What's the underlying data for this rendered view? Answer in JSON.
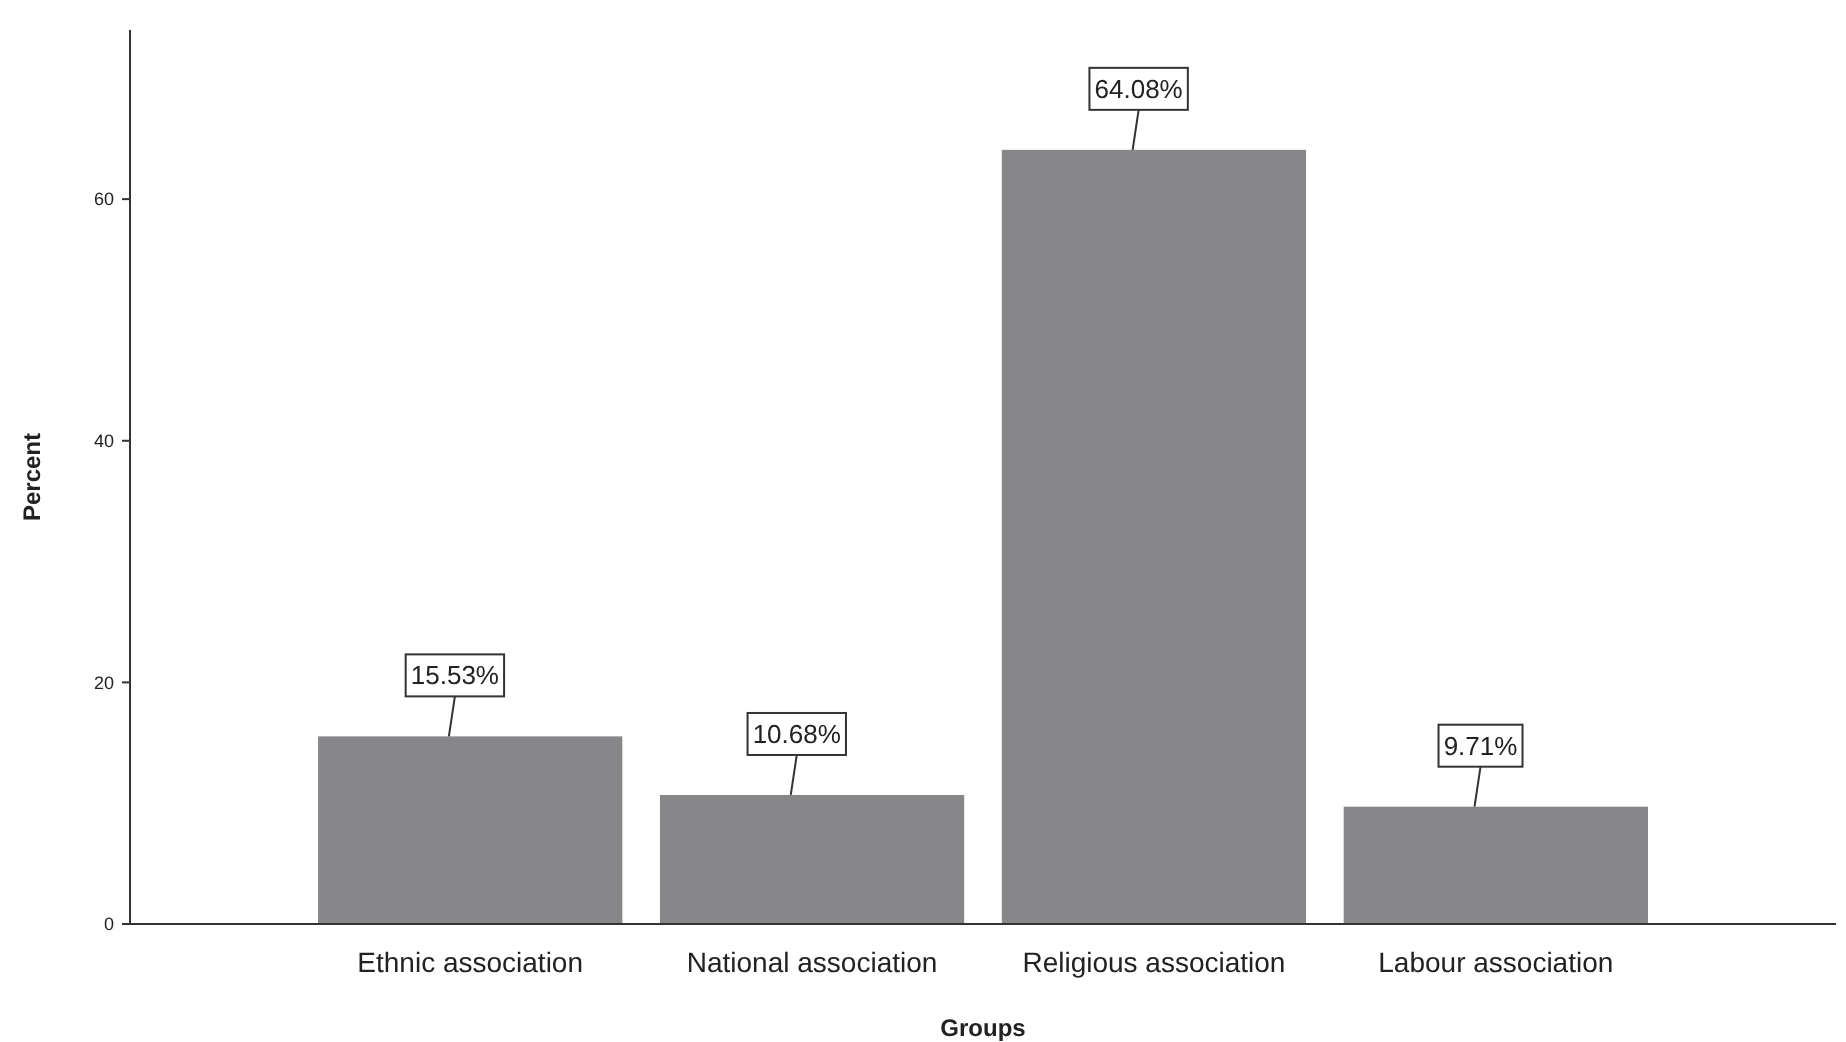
{
  "chart_data": {
    "type": "bar",
    "xlabel": "Groups",
    "ylabel": "Percent",
    "categories": [
      "Ethnic association",
      "National association",
      "Religious association",
      "Labour association"
    ],
    "values": [
      15.53,
      10.68,
      64.08,
      9.71
    ],
    "value_labels": [
      "15.53%",
      "10.68%",
      "64.08%",
      "9.71%"
    ],
    "color": "#87878a",
    "ylim": [
      0,
      74
    ],
    "yticks": [
      0,
      20,
      40,
      60
    ],
    "grid": false
  }
}
